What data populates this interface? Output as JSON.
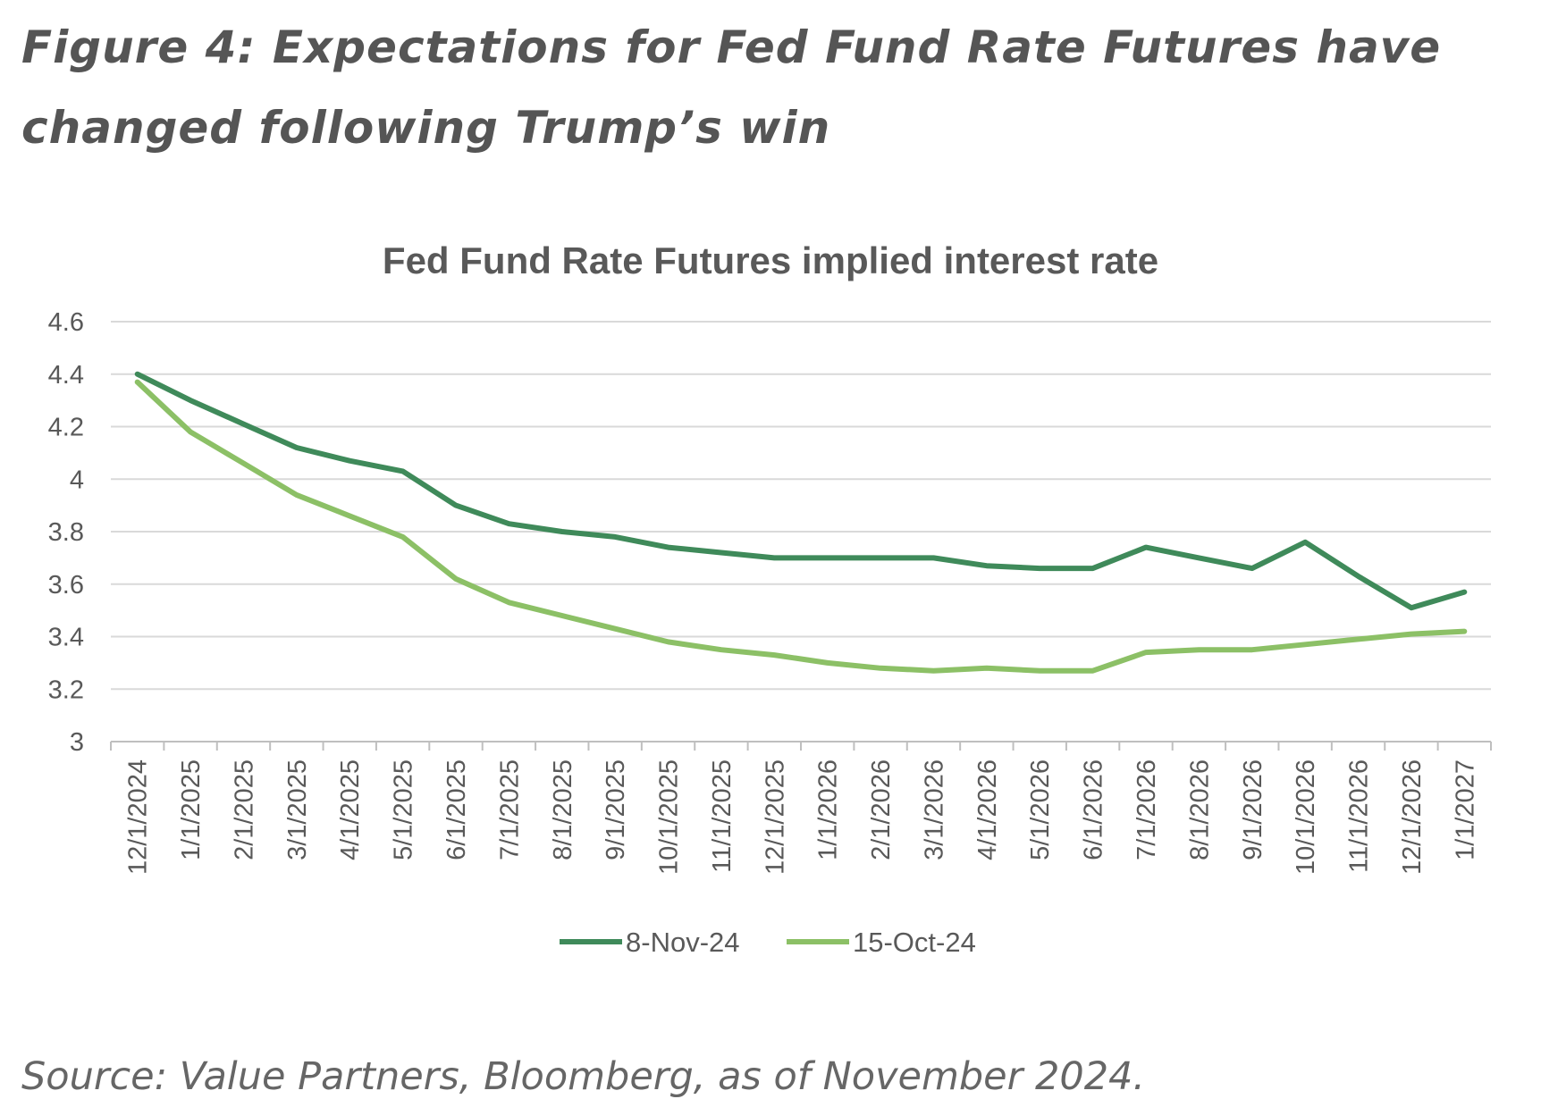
{
  "figure": {
    "title": "Figure 4: Expectations for Fed Fund Rate Futures have changed following Trump’s win",
    "source": "Source: Value Partners, Bloomberg, as of November 2024."
  },
  "chart_data": {
    "type": "line",
    "title": "Fed Fund Rate Futures implied interest rate",
    "xlabel": "",
    "ylabel": "",
    "categories": [
      "12/1/2024",
      "1/1/2025",
      "2/1/2025",
      "3/1/2025",
      "4/1/2025",
      "5/1/2025",
      "6/1/2025",
      "7/1/2025",
      "8/1/2025",
      "9/1/2025",
      "10/1/2025",
      "11/1/2025",
      "12/1/2025",
      "1/1/2026",
      "2/1/2026",
      "3/1/2026",
      "4/1/2026",
      "5/1/2026",
      "6/1/2026",
      "7/1/2026",
      "8/1/2026",
      "9/1/2026",
      "10/1/2026",
      "11/1/2026",
      "12/1/2026",
      "1/1/2027"
    ],
    "y_ticks": [
      "3",
      "3.2",
      "3.4",
      "3.6",
      "3.8",
      "4",
      "4.2",
      "4.4",
      "4.6"
    ],
    "ylim": [
      3,
      4.6
    ],
    "grid": true,
    "legend_position": "bottom",
    "series": [
      {
        "name": "8-Nov-24",
        "color": "#3f8a5a",
        "values": [
          4.4,
          4.3,
          4.21,
          4.12,
          4.07,
          4.03,
          3.9,
          3.83,
          3.8,
          3.78,
          3.74,
          3.72,
          3.7,
          3.7,
          3.7,
          3.7,
          3.67,
          3.66,
          3.66,
          3.74,
          3.7,
          3.66,
          3.76,
          3.63,
          3.51,
          3.57
        ]
      },
      {
        "name": "15-Oct-24",
        "color": "#8cc066",
        "values": [
          4.37,
          4.18,
          4.06,
          3.94,
          3.86,
          3.78,
          3.62,
          3.53,
          3.48,
          3.43,
          3.38,
          3.35,
          3.33,
          3.3,
          3.28,
          3.27,
          3.28,
          3.27,
          3.27,
          3.34,
          3.35,
          3.35,
          3.37,
          3.39,
          3.41,
          3.42
        ]
      }
    ]
  }
}
